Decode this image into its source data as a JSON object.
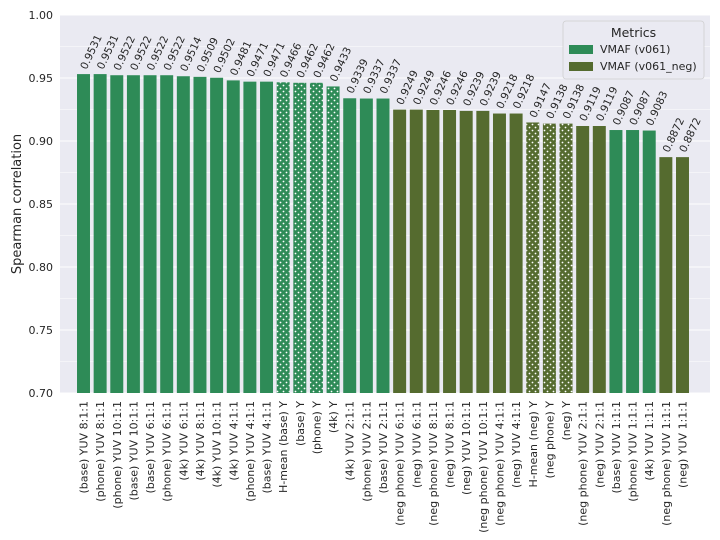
{
  "chart_data": {
    "type": "bar",
    "title": "",
    "xlabel": "",
    "ylabel": "Spearman correlation",
    "ylim": [
      0.7,
      1.0
    ],
    "yticks": [
      "0.70",
      "0.75",
      "0.80",
      "0.85",
      "0.90",
      "0.95",
      "1.00"
    ],
    "grid": true,
    "legend": {
      "title": "Metrics",
      "placement": "top-right",
      "entries": [
        {
          "name": "VMAF (v061)",
          "color": "#2e8b57"
        },
        {
          "name": "VMAF (v061_neg)",
          "color": "#556b2f"
        }
      ]
    },
    "bars": [
      {
        "category": "(base) YUV 8:1:1",
        "value": 0.9531,
        "label": "0.9531",
        "series": 0,
        "hatched": false
      },
      {
        "category": "(phone) YUV 8:1:1",
        "value": 0.9531,
        "label": "0.9531",
        "series": 0,
        "hatched": false
      },
      {
        "category": "(phone) YUV 10:1:1",
        "value": 0.9522,
        "label": "0.9522",
        "series": 0,
        "hatched": false
      },
      {
        "category": "(base) YUV 10:1:1",
        "value": 0.9522,
        "label": "0.9522",
        "series": 0,
        "hatched": false
      },
      {
        "category": "(base) YUV 6:1:1",
        "value": 0.9522,
        "label": "0.9522",
        "series": 0,
        "hatched": false
      },
      {
        "category": "(phone) YUV 6:1:1",
        "value": 0.9522,
        "label": "0.9522",
        "series": 0,
        "hatched": false
      },
      {
        "category": "(4k) YUV 6:1:1",
        "value": 0.9514,
        "label": "0.9514",
        "series": 0,
        "hatched": false
      },
      {
        "category": "(4k) YUV 8:1:1",
        "value": 0.9509,
        "label": "0.9509",
        "series": 0,
        "hatched": false
      },
      {
        "category": "(4k) YUV 10:1:1",
        "value": 0.9502,
        "label": "0.9502",
        "series": 0,
        "hatched": false
      },
      {
        "category": "(4k) YUV 4:1:1",
        "value": 0.9481,
        "label": "0.9481",
        "series": 0,
        "hatched": false
      },
      {
        "category": "(phone) YUV 4:1:1",
        "value": 0.9471,
        "label": "0.9471",
        "series": 0,
        "hatched": false
      },
      {
        "category": "(base) YUV 4:1:1",
        "value": 0.9471,
        "label": "0.9471",
        "series": 0,
        "hatched": false
      },
      {
        "category": "H-mean (base) Y",
        "value": 0.9466,
        "label": "0.9466",
        "series": 0,
        "hatched": true
      },
      {
        "category": "(base) Y",
        "value": 0.9462,
        "label": "0.9462",
        "series": 0,
        "hatched": true
      },
      {
        "category": "(phone) Y",
        "value": 0.9462,
        "label": "0.9462",
        "series": 0,
        "hatched": true
      },
      {
        "category": "(4k) Y",
        "value": 0.9433,
        "label": "0.9433",
        "series": 0,
        "hatched": true
      },
      {
        "category": "(4k) YUV 2:1:1",
        "value": 0.9339,
        "label": "0.9339",
        "series": 0,
        "hatched": false
      },
      {
        "category": "(phone) YUV 2:1:1",
        "value": 0.9337,
        "label": "0.9337",
        "series": 0,
        "hatched": false
      },
      {
        "category": "(base) YUV 2:1:1",
        "value": 0.9337,
        "label": "0.9337",
        "series": 0,
        "hatched": false
      },
      {
        "category": "(neg phone) YUV 6:1:1",
        "value": 0.9249,
        "label": "0.9249",
        "series": 1,
        "hatched": false
      },
      {
        "category": "(neg) YUV 6:1:1",
        "value": 0.9249,
        "label": "0.9249",
        "series": 1,
        "hatched": false
      },
      {
        "category": "(neg phone) YUV 8:1:1",
        "value": 0.9246,
        "label": "0.9246",
        "series": 1,
        "hatched": false
      },
      {
        "category": "(neg) YUV 8:1:1",
        "value": 0.9246,
        "label": "0.9246",
        "series": 1,
        "hatched": false
      },
      {
        "category": "(neg) YUV 10:1:1",
        "value": 0.9239,
        "label": "0.9239",
        "series": 1,
        "hatched": false
      },
      {
        "category": "(neg phone) YUV 10:1:1",
        "value": 0.9239,
        "label": "0.9239",
        "series": 1,
        "hatched": false
      },
      {
        "category": "(neg phone) YUV 4:1:1",
        "value": 0.9218,
        "label": "0.9218",
        "series": 1,
        "hatched": false
      },
      {
        "category": "(neg) YUV 4:1:1",
        "value": 0.9218,
        "label": "0.9218",
        "series": 1,
        "hatched": false
      },
      {
        "category": "H-mean (neg) Y",
        "value": 0.9147,
        "label": "0.9147",
        "series": 1,
        "hatched": true
      },
      {
        "category": "(neg phone) Y",
        "value": 0.9138,
        "label": "0.9138",
        "series": 1,
        "hatched": true
      },
      {
        "category": "(neg) Y",
        "value": 0.9138,
        "label": "0.9138",
        "series": 1,
        "hatched": true
      },
      {
        "category": "(neg phone) YUV 2:1:1",
        "value": 0.9119,
        "label": "0.9119",
        "series": 1,
        "hatched": false
      },
      {
        "category": "(neg) YUV 2:1:1",
        "value": 0.9119,
        "label": "0.9119",
        "series": 1,
        "hatched": false
      },
      {
        "category": "(base) YUV 1:1:1",
        "value": 0.9087,
        "label": "0.9087",
        "series": 0,
        "hatched": false
      },
      {
        "category": "(phone) YUV 1:1:1",
        "value": 0.9087,
        "label": "0.9087",
        "series": 0,
        "hatched": false
      },
      {
        "category": "(4k) YUV 1:1:1",
        "value": 0.9083,
        "label": "0.9083",
        "series": 0,
        "hatched": false
      },
      {
        "category": "(neg phone) YUV 1:1:1",
        "value": 0.8872,
        "label": "0.8872",
        "series": 1,
        "hatched": false
      },
      {
        "category": "(neg) YUV 1:1:1",
        "value": 0.8872,
        "label": "0.8872",
        "series": 1,
        "hatched": false
      }
    ]
  }
}
